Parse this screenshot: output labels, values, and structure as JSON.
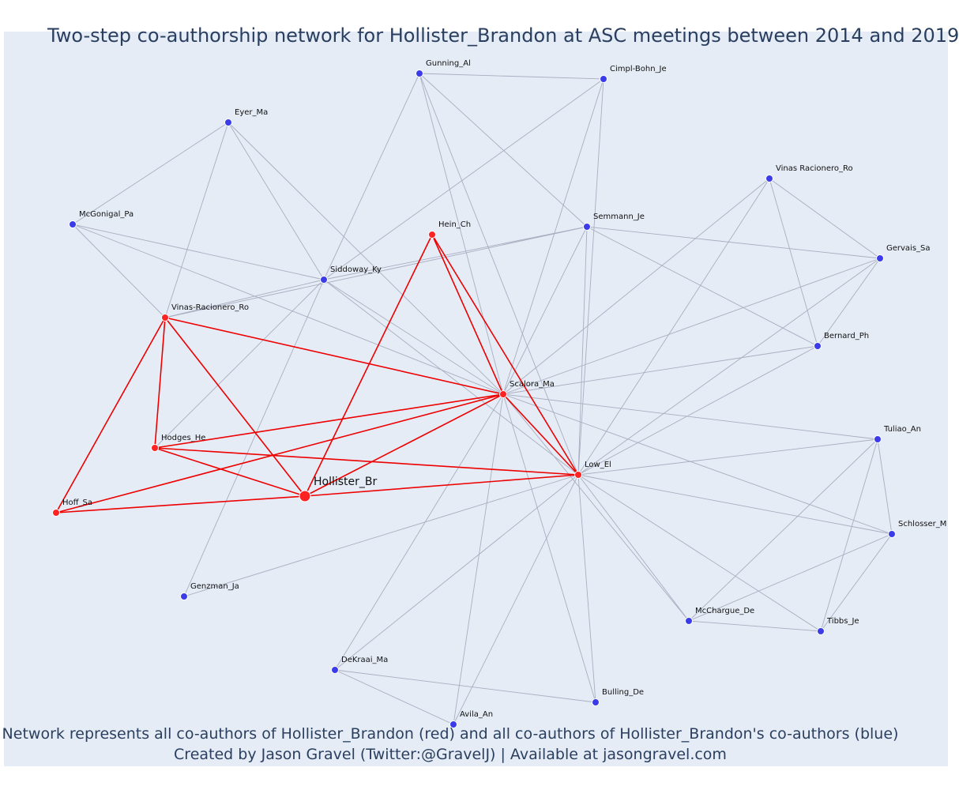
{
  "title": "Two-step co-authorship network for Hollister_Brandon at ASC meetings between 2014 and 2019",
  "caption_line1": "Network represents all co-authors of Hollister_Brandon (red) and all co-authors of Hollister_Brandon's co-authors (blue)",
  "caption_line2": "Created by Jason Gravel (Twitter:@GravelJ) | Available at jasongravel.com",
  "colors": {
    "background": "#e5ecf6",
    "red_node": "#ff2222",
    "blue_node": "#3b3be8",
    "red_edge": "#ee0000",
    "grey_edge": "#a9aec0",
    "text": "#2a3f5f"
  },
  "nodes": [
    {
      "id": "Hollister_Br",
      "group": "center"
    },
    {
      "id": "Scalora_Ma",
      "group": "red"
    },
    {
      "id": "Low_El",
      "group": "red"
    },
    {
      "id": "Hein_Ch",
      "group": "red"
    },
    {
      "id": "Vinas-Racionero_Ro",
      "group": "red"
    },
    {
      "id": "Hodges_He",
      "group": "red"
    },
    {
      "id": "Hoff_Sa",
      "group": "red"
    },
    {
      "id": "Gunning_Al",
      "group": "blue"
    },
    {
      "id": "Cimpl-Bohn_Je",
      "group": "blue"
    },
    {
      "id": "Eyer_Ma",
      "group": "blue"
    },
    {
      "id": "McGonigal_Pa",
      "group": "blue"
    },
    {
      "id": "Siddoway_Ky",
      "group": "blue"
    },
    {
      "id": "Semmann_Je",
      "group": "blue"
    },
    {
      "id": "Vinas Racionero_Ro",
      "group": "blue"
    },
    {
      "id": "Gervais_Sa",
      "group": "blue"
    },
    {
      "id": "Bernard_Ph",
      "group": "blue"
    },
    {
      "id": "Tuliao_An",
      "group": "blue"
    },
    {
      "id": "Schlosser_M",
      "group": "blue"
    },
    {
      "id": "McChargue_De",
      "group": "blue"
    },
    {
      "id": "Tibbs_Je",
      "group": "blue"
    },
    {
      "id": "Bulling_De",
      "group": "blue"
    },
    {
      "id": "Avila_An",
      "group": "blue"
    },
    {
      "id": "DeKraai_Ma",
      "group": "blue"
    },
    {
      "id": "Genzman_Ja",
      "group": "blue"
    }
  ],
  "edges": [
    [
      "Hollister_Br",
      "Scalora_Ma"
    ],
    [
      "Hollister_Br",
      "Low_El"
    ],
    [
      "Hollister_Br",
      "Hein_Ch"
    ],
    [
      "Hollister_Br",
      "Vinas-Racionero_Ro"
    ],
    [
      "Hollister_Br",
      "Hodges_He"
    ],
    [
      "Hollister_Br",
      "Hoff_Sa"
    ],
    [
      "Scalora_Ma",
      "Low_El"
    ],
    [
      "Scalora_Ma",
      "Hein_Ch"
    ],
    [
      "Scalora_Ma",
      "Vinas-Racionero_Ro"
    ],
    [
      "Scalora_Ma",
      "Hodges_He"
    ],
    [
      "Scalora_Ma",
      "Hoff_Sa"
    ],
    [
      "Low_El",
      "Hein_Ch"
    ],
    [
      "Low_El",
      "Hodges_He"
    ],
    [
      "Vinas-Racionero_Ro",
      "Hodges_He"
    ],
    [
      "Vinas-Racionero_Ro",
      "Hoff_Sa"
    ],
    [
      "Gunning_Al",
      "Cimpl-Bohn_Je"
    ],
    [
      "Gunning_Al",
      "Siddoway_Ky"
    ],
    [
      "Gunning_Al",
      "Scalora_Ma"
    ],
    [
      "Gunning_Al",
      "Semmann_Je"
    ],
    [
      "Gunning_Al",
      "Low_El"
    ],
    [
      "Cimpl-Bohn_Je",
      "Siddoway_Ky"
    ],
    [
      "Cimpl-Bohn_Je",
      "Scalora_Ma"
    ],
    [
      "Cimpl-Bohn_Je",
      "Low_El"
    ],
    [
      "Eyer_Ma",
      "McGonigal_Pa"
    ],
    [
      "Eyer_Ma",
      "Vinas-Racionero_Ro"
    ],
    [
      "Eyer_Ma",
      "Siddoway_Ky"
    ],
    [
      "Eyer_Ma",
      "Scalora_Ma"
    ],
    [
      "McGonigal_Pa",
      "Vinas-Racionero_Ro"
    ],
    [
      "McGonigal_Pa",
      "Siddoway_Ky"
    ],
    [
      "McGonigal_Pa",
      "Scalora_Ma"
    ],
    [
      "Siddoway_Ky",
      "Vinas-Racionero_Ro"
    ],
    [
      "Siddoway_Ky",
      "Semmann_Je"
    ],
    [
      "Siddoway_Ky",
      "Scalora_Ma"
    ],
    [
      "Siddoway_Ky",
      "Low_El"
    ],
    [
      "Siddoway_Ky",
      "Hodges_He"
    ],
    [
      "Siddoway_Ky",
      "Genzman_Ja"
    ],
    [
      "Vinas-Racionero_Ro",
      "Semmann_Je"
    ],
    [
      "Semmann_Je",
      "Scalora_Ma"
    ],
    [
      "Semmann_Je",
      "Low_El"
    ],
    [
      "Semmann_Je",
      "Gervais_Sa"
    ],
    [
      "Semmann_Je",
      "Bernard_Ph"
    ],
    [
      "Vinas Racionero_Ro",
      "Gervais_Sa"
    ],
    [
      "Vinas Racionero_Ro",
      "Bernard_Ph"
    ],
    [
      "Vinas Racionero_Ro",
      "Scalora_Ma"
    ],
    [
      "Vinas Racionero_Ro",
      "Low_El"
    ],
    [
      "Gervais_Sa",
      "Bernard_Ph"
    ],
    [
      "Gervais_Sa",
      "Scalora_Ma"
    ],
    [
      "Gervais_Sa",
      "Low_El"
    ],
    [
      "Bernard_Ph",
      "Scalora_Ma"
    ],
    [
      "Bernard_Ph",
      "Low_El"
    ],
    [
      "Tuliao_An",
      "Scalora_Ma"
    ],
    [
      "Tuliao_An",
      "Low_El"
    ],
    [
      "Tuliao_An",
      "Schlosser_M"
    ],
    [
      "Tuliao_An",
      "McChargue_De"
    ],
    [
      "Tuliao_An",
      "Tibbs_Je"
    ],
    [
      "Schlosser_M",
      "Scalora_Ma"
    ],
    [
      "Schlosser_M",
      "Low_El"
    ],
    [
      "Schlosser_M",
      "McChargue_De"
    ],
    [
      "Schlosser_M",
      "Tibbs_Je"
    ],
    [
      "McChargue_De",
      "Tibbs_Je"
    ],
    [
      "McChargue_De",
      "Scalora_Ma"
    ],
    [
      "McChargue_De",
      "Low_El"
    ],
    [
      "Tibbs_Je",
      "Low_El"
    ],
    [
      "Bulling_De",
      "Scalora_Ma"
    ],
    [
      "Bulling_De",
      "Low_El"
    ],
    [
      "Bulling_De",
      "DeKraai_Ma"
    ],
    [
      "Avila_An",
      "Scalora_Ma"
    ],
    [
      "Avila_An",
      "Low_El"
    ],
    [
      "Avila_An",
      "DeKraai_Ma"
    ],
    [
      "DeKraai_Ma",
      "Scalora_Ma"
    ],
    [
      "DeKraai_Ma",
      "Low_El"
    ],
    [
      "Genzman_Ja",
      "Low_El"
    ]
  ]
}
